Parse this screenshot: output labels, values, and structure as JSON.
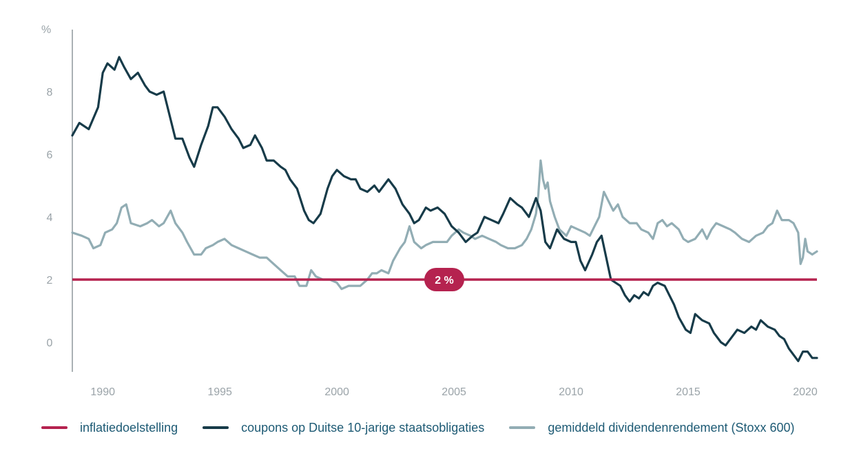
{
  "chart_data": {
    "type": "line",
    "ylabel": "%",
    "xlim": [
      1988.7,
      2020.5
    ],
    "ylim": [
      -1,
      10
    ],
    "yticks": [
      "0",
      "2",
      "4",
      "6",
      "8"
    ],
    "xticks": [
      "1990",
      "1995",
      "2000",
      "2005",
      "2010",
      "2015",
      "2020"
    ],
    "reference_line": {
      "name": "inflatiedoelstelling",
      "value": 2,
      "label": "2 %",
      "color": "#b5224f"
    },
    "series": [
      {
        "name": "coupons op Duitse 10-jarige staatsobligaties",
        "color": "#173b49",
        "points": [
          [
            1988.7,
            6.6
          ],
          [
            1989.0,
            7.0
          ],
          [
            1989.4,
            6.8
          ],
          [
            1989.8,
            7.5
          ],
          [
            1990.0,
            8.6
          ],
          [
            1990.2,
            8.9
          ],
          [
            1990.5,
            8.7
          ],
          [
            1990.7,
            9.1
          ],
          [
            1990.9,
            8.8
          ],
          [
            1991.2,
            8.4
          ],
          [
            1991.5,
            8.6
          ],
          [
            1991.8,
            8.2
          ],
          [
            1992.0,
            8.0
          ],
          [
            1992.3,
            7.9
          ],
          [
            1992.6,
            8.0
          ],
          [
            1992.9,
            7.1
          ],
          [
            1993.1,
            6.5
          ],
          [
            1993.4,
            6.5
          ],
          [
            1993.7,
            5.9
          ],
          [
            1993.9,
            5.6
          ],
          [
            1994.2,
            6.3
          ],
          [
            1994.5,
            6.9
          ],
          [
            1994.7,
            7.5
          ],
          [
            1994.9,
            7.5
          ],
          [
            1995.2,
            7.2
          ],
          [
            1995.5,
            6.8
          ],
          [
            1995.8,
            6.5
          ],
          [
            1996.0,
            6.2
          ],
          [
            1996.3,
            6.3
          ],
          [
            1996.5,
            6.6
          ],
          [
            1996.8,
            6.2
          ],
          [
            1997.0,
            5.8
          ],
          [
            1997.3,
            5.8
          ],
          [
            1997.6,
            5.6
          ],
          [
            1997.8,
            5.5
          ],
          [
            1998.0,
            5.2
          ],
          [
            1998.3,
            4.9
          ],
          [
            1998.6,
            4.2
          ],
          [
            1998.8,
            3.9
          ],
          [
            1999.0,
            3.8
          ],
          [
            1999.3,
            4.1
          ],
          [
            1999.6,
            4.9
          ],
          [
            1999.8,
            5.3
          ],
          [
            2000.0,
            5.5
          ],
          [
            2000.3,
            5.3
          ],
          [
            2000.6,
            5.2
          ],
          [
            2000.8,
            5.2
          ],
          [
            2001.0,
            4.9
          ],
          [
            2001.3,
            4.8
          ],
          [
            2001.6,
            5.0
          ],
          [
            2001.8,
            4.8
          ],
          [
            2002.0,
            5.0
          ],
          [
            2002.2,
            5.2
          ],
          [
            2002.5,
            4.9
          ],
          [
            2002.8,
            4.4
          ],
          [
            2003.1,
            4.1
          ],
          [
            2003.3,
            3.8
          ],
          [
            2003.5,
            3.9
          ],
          [
            2003.8,
            4.3
          ],
          [
            2004.0,
            4.2
          ],
          [
            2004.3,
            4.3
          ],
          [
            2004.6,
            4.1
          ],
          [
            2004.9,
            3.7
          ],
          [
            2005.2,
            3.5
          ],
          [
            2005.5,
            3.2
          ],
          [
            2005.8,
            3.4
          ],
          [
            2006.0,
            3.5
          ],
          [
            2006.3,
            4.0
          ],
          [
            2006.6,
            3.9
          ],
          [
            2006.9,
            3.8
          ],
          [
            2007.1,
            4.1
          ],
          [
            2007.4,
            4.6
          ],
          [
            2007.7,
            4.4
          ],
          [
            2007.9,
            4.3
          ],
          [
            2008.2,
            4.0
          ],
          [
            2008.5,
            4.6
          ],
          [
            2008.7,
            4.2
          ],
          [
            2008.9,
            3.2
          ],
          [
            2009.1,
            3.0
          ],
          [
            2009.4,
            3.6
          ],
          [
            2009.7,
            3.3
          ],
          [
            2010.0,
            3.2
          ],
          [
            2010.2,
            3.2
          ],
          [
            2010.4,
            2.6
          ],
          [
            2010.6,
            2.3
          ],
          [
            2010.9,
            2.8
          ],
          [
            2011.1,
            3.2
          ],
          [
            2011.3,
            3.4
          ],
          [
            2011.5,
            2.7
          ],
          [
            2011.7,
            2.0
          ],
          [
            2011.9,
            1.9
          ],
          [
            2012.1,
            1.8
          ],
          [
            2012.3,
            1.5
          ],
          [
            2012.5,
            1.3
          ],
          [
            2012.7,
            1.5
          ],
          [
            2012.9,
            1.4
          ],
          [
            2013.1,
            1.6
          ],
          [
            2013.3,
            1.5
          ],
          [
            2013.5,
            1.8
          ],
          [
            2013.7,
            1.9
          ],
          [
            2014.0,
            1.8
          ],
          [
            2014.2,
            1.5
          ],
          [
            2014.4,
            1.2
          ],
          [
            2014.6,
            0.8
          ],
          [
            2014.9,
            0.4
          ],
          [
            2015.1,
            0.3
          ],
          [
            2015.3,
            0.9
          ],
          [
            2015.6,
            0.7
          ],
          [
            2015.9,
            0.6
          ],
          [
            2016.1,
            0.3
          ],
          [
            2016.4,
            0.0
          ],
          [
            2016.6,
            -0.1
          ],
          [
            2016.9,
            0.2
          ],
          [
            2017.1,
            0.4
          ],
          [
            2017.4,
            0.3
          ],
          [
            2017.7,
            0.5
          ],
          [
            2017.9,
            0.4
          ],
          [
            2018.1,
            0.7
          ],
          [
            2018.4,
            0.5
          ],
          [
            2018.7,
            0.4
          ],
          [
            2018.9,
            0.2
          ],
          [
            2019.1,
            0.1
          ],
          [
            2019.3,
            -0.2
          ],
          [
            2019.5,
            -0.4
          ],
          [
            2019.7,
            -0.6
          ],
          [
            2019.9,
            -0.3
          ],
          [
            2020.1,
            -0.3
          ],
          [
            2020.3,
            -0.5
          ],
          [
            2020.5,
            -0.5
          ]
        ]
      },
      {
        "name": "gemiddeld dividendenrendement (Stoxx 600)",
        "color": "#92adb4",
        "points": [
          [
            1988.7,
            3.5
          ],
          [
            1989.1,
            3.4
          ],
          [
            1989.4,
            3.3
          ],
          [
            1989.6,
            3.0
          ],
          [
            1989.9,
            3.1
          ],
          [
            1990.1,
            3.5
          ],
          [
            1990.4,
            3.6
          ],
          [
            1990.6,
            3.8
          ],
          [
            1990.8,
            4.3
          ],
          [
            1991.0,
            4.4
          ],
          [
            1991.2,
            3.8
          ],
          [
            1991.6,
            3.7
          ],
          [
            1991.9,
            3.8
          ],
          [
            1992.1,
            3.9
          ],
          [
            1992.4,
            3.7
          ],
          [
            1992.6,
            3.8
          ],
          [
            1992.9,
            4.2
          ],
          [
            1993.1,
            3.8
          ],
          [
            1993.4,
            3.5
          ],
          [
            1993.6,
            3.2
          ],
          [
            1993.9,
            2.8
          ],
          [
            1994.2,
            2.8
          ],
          [
            1994.4,
            3.0
          ],
          [
            1994.7,
            3.1
          ],
          [
            1994.9,
            3.2
          ],
          [
            1995.2,
            3.3
          ],
          [
            1995.5,
            3.1
          ],
          [
            1995.8,
            3.0
          ],
          [
            1996.1,
            2.9
          ],
          [
            1996.4,
            2.8
          ],
          [
            1996.7,
            2.7
          ],
          [
            1997.0,
            2.7
          ],
          [
            1997.3,
            2.5
          ],
          [
            1997.6,
            2.3
          ],
          [
            1997.9,
            2.1
          ],
          [
            1998.2,
            2.1
          ],
          [
            1998.4,
            1.8
          ],
          [
            1998.7,
            1.8
          ],
          [
            1998.9,
            2.3
          ],
          [
            1999.1,
            2.1
          ],
          [
            1999.4,
            2.0
          ],
          [
            1999.7,
            2.0
          ],
          [
            2000.0,
            1.9
          ],
          [
            2000.2,
            1.7
          ],
          [
            2000.5,
            1.8
          ],
          [
            2000.8,
            1.8
          ],
          [
            2001.0,
            1.8
          ],
          [
            2001.3,
            2.0
          ],
          [
            2001.5,
            2.2
          ],
          [
            2001.7,
            2.2
          ],
          [
            2001.9,
            2.3
          ],
          [
            2002.2,
            2.2
          ],
          [
            2002.4,
            2.6
          ],
          [
            2002.7,
            3.0
          ],
          [
            2002.9,
            3.2
          ],
          [
            2003.1,
            3.7
          ],
          [
            2003.3,
            3.2
          ],
          [
            2003.6,
            3.0
          ],
          [
            2003.8,
            3.1
          ],
          [
            2004.1,
            3.2
          ],
          [
            2004.4,
            3.2
          ],
          [
            2004.7,
            3.2
          ],
          [
            2004.9,
            3.4
          ],
          [
            2005.2,
            3.6
          ],
          [
            2005.4,
            3.5
          ],
          [
            2005.7,
            3.4
          ],
          [
            2005.9,
            3.3
          ],
          [
            2006.2,
            3.4
          ],
          [
            2006.5,
            3.3
          ],
          [
            2006.8,
            3.2
          ],
          [
            2007.0,
            3.1
          ],
          [
            2007.3,
            3.0
          ],
          [
            2007.6,
            3.0
          ],
          [
            2007.9,
            3.1
          ],
          [
            2008.1,
            3.3
          ],
          [
            2008.3,
            3.6
          ],
          [
            2008.5,
            4.1
          ],
          [
            2008.6,
            4.7
          ],
          [
            2008.7,
            5.8
          ],
          [
            2008.8,
            5.2
          ],
          [
            2008.9,
            4.9
          ],
          [
            2009.0,
            5.1
          ],
          [
            2009.1,
            4.5
          ],
          [
            2009.3,
            4.0
          ],
          [
            2009.5,
            3.6
          ],
          [
            2009.8,
            3.4
          ],
          [
            2010.0,
            3.7
          ],
          [
            2010.3,
            3.6
          ],
          [
            2010.6,
            3.5
          ],
          [
            2010.8,
            3.4
          ],
          [
            2011.0,
            3.7
          ],
          [
            2011.2,
            4.0
          ],
          [
            2011.4,
            4.8
          ],
          [
            2011.6,
            4.5
          ],
          [
            2011.8,
            4.2
          ],
          [
            2012.0,
            4.4
          ],
          [
            2012.2,
            4.0
          ],
          [
            2012.5,
            3.8
          ],
          [
            2012.8,
            3.8
          ],
          [
            2013.0,
            3.6
          ],
          [
            2013.3,
            3.5
          ],
          [
            2013.5,
            3.3
          ],
          [
            2013.7,
            3.8
          ],
          [
            2013.9,
            3.9
          ],
          [
            2014.1,
            3.7
          ],
          [
            2014.3,
            3.8
          ],
          [
            2014.6,
            3.6
          ],
          [
            2014.8,
            3.3
          ],
          [
            2015.0,
            3.2
          ],
          [
            2015.3,
            3.3
          ],
          [
            2015.6,
            3.6
          ],
          [
            2015.8,
            3.3
          ],
          [
            2016.0,
            3.6
          ],
          [
            2016.2,
            3.8
          ],
          [
            2016.5,
            3.7
          ],
          [
            2016.8,
            3.6
          ],
          [
            2017.0,
            3.5
          ],
          [
            2017.3,
            3.3
          ],
          [
            2017.6,
            3.2
          ],
          [
            2017.9,
            3.4
          ],
          [
            2018.2,
            3.5
          ],
          [
            2018.4,
            3.7
          ],
          [
            2018.6,
            3.8
          ],
          [
            2018.8,
            4.2
          ],
          [
            2019.0,
            3.9
          ],
          [
            2019.3,
            3.9
          ],
          [
            2019.5,
            3.8
          ],
          [
            2019.7,
            3.5
          ],
          [
            2019.8,
            2.5
          ],
          [
            2019.9,
            2.7
          ],
          [
            2020.0,
            3.3
          ],
          [
            2020.1,
            2.9
          ],
          [
            2020.3,
            2.8
          ],
          [
            2020.5,
            2.9
          ]
        ]
      }
    ],
    "legend": [
      {
        "label": "inflatiedoelstelling",
        "color": "#b5224f"
      },
      {
        "label": "coupons op Duitse 10-jarige staatsobligaties",
        "color": "#173b49"
      },
      {
        "label": "gemiddeld dividendenrendement (Stoxx 600)",
        "color": "#92adb4"
      }
    ]
  }
}
